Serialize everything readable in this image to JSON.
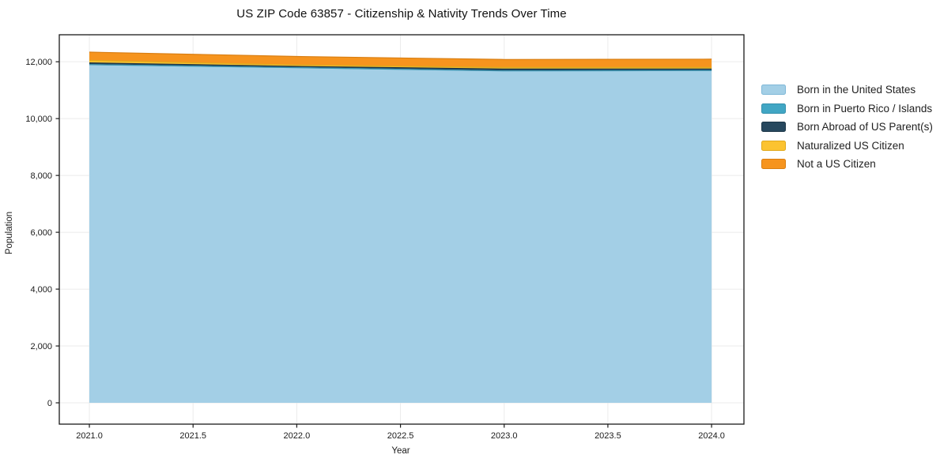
{
  "figure": {
    "title": "US ZIP Code 63857 - Citizenship & Nativity Trends Over Time",
    "background": "#ffffff"
  },
  "axes": {
    "xlabel": "Year",
    "ylabel": "Population",
    "x_tick_labels": [
      "2021.0",
      "2021.5",
      "2022.0",
      "2022.5",
      "2023.0",
      "2023.5",
      "2024.0"
    ],
    "x_tick_values": [
      2021,
      2021.5,
      2022,
      2022.5,
      2023,
      2023.5,
      2024
    ],
    "y_tick_labels": [
      "0",
      "2,000",
      "4,000",
      "6,000",
      "8,000",
      "10,000",
      "12,000"
    ],
    "y_tick_values": [
      0,
      2000,
      4000,
      6000,
      8000,
      10000,
      12000
    ],
    "grid_color": "#ebebeb",
    "spine_color": "#1a1a1a"
  },
  "chart_data": {
    "type": "area",
    "stacked": true,
    "title": "US ZIP Code 63857 - Citizenship & Nativity Trends Over Time",
    "xlabel": "Year",
    "ylabel": "Population",
    "x": [
      2021,
      2022,
      2023,
      2024
    ],
    "series": [
      {
        "name": "Born in the United States",
        "values": [
          11900,
          11790,
          11680,
          11690
        ],
        "color": "#a3cfe6",
        "edge": "#7fb8d8"
      },
      {
        "name": "Born in Puerto Rico / Islands",
        "values": [
          0,
          0,
          0,
          0
        ],
        "color": "#41a6c4",
        "edge": "#3591ad"
      },
      {
        "name": "Born Abroad of US Parent(s)",
        "values": [
          60,
          45,
          65,
          55
        ],
        "color": "#27485e",
        "edge": "#1d3748"
      },
      {
        "name": "Naturalized US Citizen",
        "values": [
          90,
          50,
          55,
          55
        ],
        "color": "#fcc330",
        "edge": "#e0a91c"
      },
      {
        "name": "Not a US Citizen",
        "values": [
          290,
          300,
          280,
          290
        ],
        "color": "#f6941e",
        "edge": "#d97e12"
      }
    ],
    "totals": [
      12340,
      12185,
      12080,
      12090
    ],
    "xlim": [
      2020.855,
      2024.156
    ],
    "ylim": [
      -750,
      12950
    ],
    "grid": true,
    "legend_position": "right"
  }
}
